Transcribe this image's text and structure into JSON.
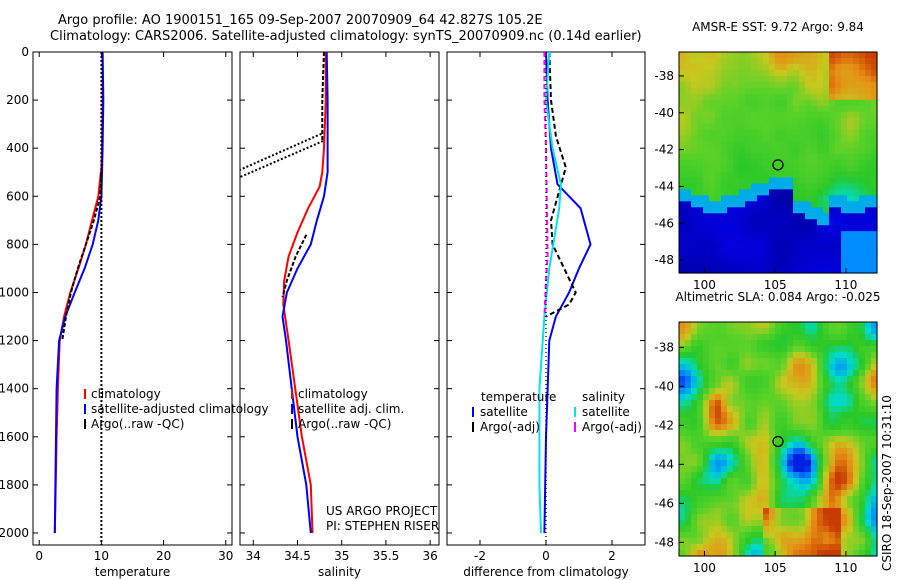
{
  "title_line1": "Argo profile: AO 1900151_165 09-Sep-2007 20070909_64 42.827S 105.2E",
  "title_line2": "Climatology: CARS2006. Satellite-adjusted climatology: synTS_20070909.nc (0.14d earlier)",
  "side_label": "CSIRO 18-Sep-2007 10:31:10",
  "colors": {
    "climatology": "#ff0000",
    "satellite": "#0000ff",
    "argo": "#000000",
    "sal_satellite": "#00e5ee",
    "sal_argo": "#ff00ff"
  },
  "chart_data": [
    {
      "type": "line",
      "xlabel": "temperature",
      "xlim": [
        -1,
        31
      ],
      "ylim": [
        2050,
        0
      ],
      "xticks": [
        "0",
        "10",
        "20",
        "30"
      ],
      "xtick_values": [
        0,
        10,
        20,
        30
      ],
      "yticks": [
        "0",
        "200",
        "400",
        "600",
        "800",
        "1000",
        "1200",
        "1400",
        "1600",
        "1800",
        "2000"
      ],
      "ytick_values": [
        0,
        200,
        400,
        600,
        800,
        1000,
        1200,
        1400,
        1600,
        1800,
        2000
      ],
      "legend": [
        "climatology",
        "satellite-adjusted climatology",
        "Argo(..raw -QC)"
      ],
      "series": [
        {
          "name": "climatology",
          "color": "climatology",
          "dash": "",
          "x": [
            10.2,
            10.2,
            10.1,
            10.0,
            9.5,
            8.5,
            7.5,
            6.3,
            5.0,
            4.0,
            3.3,
            3.0,
            2.8,
            2.5
          ],
          "y": [
            0,
            200,
            400,
            480,
            600,
            700,
            800,
            900,
            1000,
            1100,
            1200,
            1400,
            1600,
            2000
          ]
        },
        {
          "name": "satellite-adjusted climatology",
          "color": "satellite",
          "dash": "",
          "x": [
            10.2,
            10.3,
            10.2,
            10.1,
            10.0,
            9.5,
            8.6,
            7.3,
            5.7,
            4.2,
            3.2,
            2.8,
            2.7,
            2.5
          ],
          "y": [
            0,
            200,
            400,
            500,
            600,
            700,
            800,
            900,
            1000,
            1100,
            1200,
            1400,
            1600,
            2000
          ]
        },
        {
          "name": "Argo(..raw -QC)",
          "color": "argo",
          "dash": "4,2",
          "x": [
            10.0,
            9.8,
            8.8,
            7.5,
            6.2,
            5.1,
            4.3,
            3.7
          ],
          "y": [
            500,
            600,
            700,
            800,
            900,
            1000,
            1100,
            1200
          ]
        },
        {
          "name": "",
          "color": "argo",
          "dash": "2,2",
          "x": [
            10.0,
            10.0
          ],
          "y": [
            0,
            2050
          ]
        }
      ],
      "annotations": []
    },
    {
      "type": "line",
      "xlabel": "salinity",
      "xlim": [
        33.85,
        36.1
      ],
      "ylim": [
        2050,
        0
      ],
      "xticks": [
        "34",
        "34.5",
        "35",
        "35.5",
        "36"
      ],
      "xtick_values": [
        34,
        34.5,
        35,
        35.5,
        36
      ],
      "yticks": [],
      "ytick_values": [],
      "legend": [
        "climatology",
        "satellite adj. clim.",
        "Argo(..raw -QC)"
      ],
      "series": [
        {
          "name": "climatology",
          "color": "climatology",
          "dash": "",
          "x": [
            34.82,
            34.82,
            34.8,
            34.78,
            34.75,
            34.62,
            34.5,
            34.4,
            34.35,
            34.34,
            34.4,
            34.55,
            34.65,
            34.67
          ],
          "y": [
            0,
            200,
            400,
            500,
            560,
            650,
            750,
            850,
            950,
            1050,
            1200,
            1600,
            1800,
            2000
          ]
        },
        {
          "name": "satellite adj. clim.",
          "color": "satellite",
          "dash": "",
          "x": [
            34.83,
            34.84,
            34.84,
            34.84,
            34.8,
            34.72,
            34.65,
            34.5,
            34.38,
            34.33,
            34.37,
            34.5,
            34.6,
            34.65
          ],
          "y": [
            0,
            200,
            400,
            500,
            600,
            700,
            800,
            900,
            1000,
            1100,
            1200,
            1600,
            1800,
            2000
          ]
        },
        {
          "name": "Argo(..raw -QC)",
          "color": "argo",
          "dash": "4,2",
          "x": [
            34.8,
            34.79,
            34.78,
            34.78
          ],
          "y": [
            0,
            100,
            200,
            370
          ]
        },
        {
          "name": "Argo(..raw -QC)",
          "color": "argo",
          "dash": "4,2",
          "x": [
            34.6,
            34.48,
            34.38,
            34.33
          ],
          "y": [
            760,
            850,
            950,
            1020
          ]
        },
        {
          "name": "",
          "color": "argo",
          "dash": "2,2",
          "x": [
            34.77,
            33.85
          ],
          "y": [
            340,
            490
          ]
        },
        {
          "name": "",
          "color": "argo",
          "dash": "2,2",
          "x": [
            34.79,
            33.85
          ],
          "y": [
            370,
            520
          ]
        }
      ],
      "annotations": [
        "US ARGO PROJECT",
        "PI: STEPHEN RISER"
      ]
    },
    {
      "type": "line",
      "xlabel": "difference from climatology",
      "xlim": [
        -3,
        3
      ],
      "ylim": [
        2050,
        0
      ],
      "xticks": [
        "-2",
        "0",
        "2"
      ],
      "xtick_values": [
        -2,
        0,
        2
      ],
      "yticks": [],
      "ytick_values": [],
      "legend_left": {
        "heading": "temperature",
        "items": [
          "satellite",
          "Argo(-adj)"
        ]
      },
      "legend_right": {
        "heading": "salinity",
        "items": [
          "satellite",
          "Argo(-adj)"
        ]
      },
      "series": [
        {
          "name": "satellite",
          "color": "satellite",
          "dash": "",
          "x": [
            0.0,
            0.05,
            0.15,
            0.35,
            1.05,
            1.35,
            1.0,
            0.7,
            0.3,
            0.1,
            0.0,
            -0.05
          ],
          "y": [
            0,
            200,
            400,
            550,
            650,
            800,
            900,
            1000,
            1100,
            1200,
            1600,
            2000
          ]
        },
        {
          "name": "Argo(-adj)",
          "color": "argo",
          "dash": "5,3",
          "x": [
            0.1,
            0.15,
            0.3,
            0.6,
            0.15,
            0.2,
            0.9,
            0.7,
            0.0
          ],
          "y": [
            0,
            200,
            350,
            480,
            700,
            800,
            1000,
            1050,
            1100
          ]
        },
        {
          "name": "satellite",
          "color": "sal_satellite",
          "dash": "",
          "x": [
            0.1,
            0.0,
            0.2,
            0.45,
            0.4,
            0.1,
            -0.05,
            -0.2,
            -0.2,
            -0.15
          ],
          "y": [
            0,
            200,
            400,
            550,
            650,
            900,
            1100,
            1400,
            1800,
            2000
          ]
        },
        {
          "name": "Argo(-adj)",
          "color": "sal_argo",
          "dash": "5,3",
          "x": [
            -0.05,
            -0.05,
            0.0,
            0.05,
            0.0,
            -0.05
          ],
          "y": [
            0,
            200,
            400,
            850,
            950,
            1100
          ]
        },
        {
          "name": "",
          "color": "argo",
          "dash": "1,3",
          "x": [
            0.0,
            0.0
          ],
          "y": [
            0,
            2050
          ]
        }
      ],
      "annotations": []
    },
    {
      "type": "heatmap",
      "title": "AMSR-E SST: 9.72 Argo: 9.84",
      "xlim": [
        98.2,
        112.2
      ],
      "ylim": [
        -48.7,
        -36.7
      ],
      "xticks": [
        "100",
        "105",
        "110"
      ],
      "xtick_values": [
        100,
        105,
        110
      ],
      "yticks": [
        "-38",
        "-40",
        "-42",
        "-44",
        "-46",
        "-48"
      ],
      "ytick_values": [
        -38,
        -40,
        -42,
        -44,
        -46,
        -48
      ],
      "marker": {
        "x": 105.2,
        "y": -42.827
      }
    },
    {
      "type": "heatmap",
      "title": "Altimetric SLA: 0.084 Argo: -0.025",
      "xlim": [
        98.2,
        112.2
      ],
      "ylim": [
        -48.7,
        -36.7
      ],
      "xticks": [
        "100",
        "105",
        "110"
      ],
      "xtick_values": [
        100,
        105,
        110
      ],
      "yticks": [
        "-38",
        "-40",
        "-42",
        "-44",
        "-46",
        "-48"
      ],
      "ytick_values": [
        -38,
        -40,
        -42,
        -44,
        -46,
        -48
      ],
      "marker": {
        "x": 105.2,
        "y": -42.827
      }
    }
  ]
}
